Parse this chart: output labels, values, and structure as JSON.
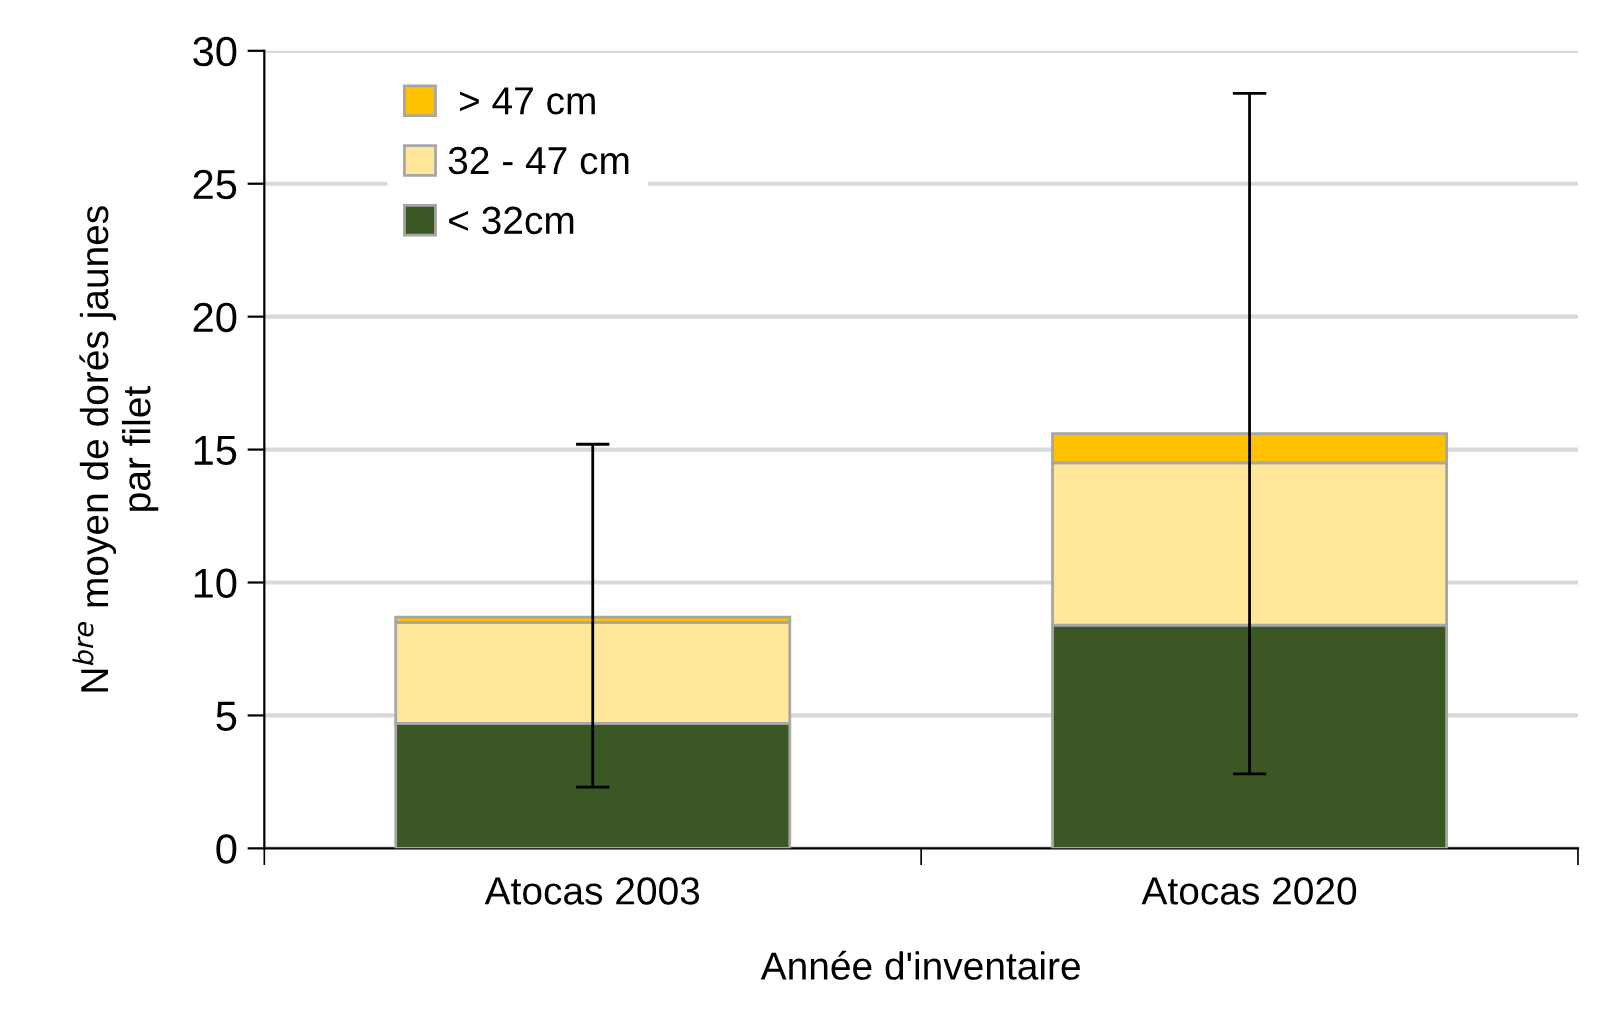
{
  "chart_data": {
    "type": "bar",
    "stacked": true,
    "xlabel": "Année d'inventaire",
    "ylabel": "N$^{bre}$ moyen de dorés jaunes\npar filet",
    "categories": [
      "Atocas 2003",
      "Atocas 2020"
    ],
    "series": [
      {
        "name": "< 32cm",
        "color": "#3b5723",
        "values": [
          4.7,
          8.4
        ]
      },
      {
        "name": "32 - 47 cm",
        "color": "#ffe699",
        "values": [
          3.8,
          6.1
        ]
      },
      {
        "name": " > 47 cm",
        "color": "#ffc000",
        "values": [
          0.2,
          1.1
        ],
        "errors": [
          [
            2.3,
            15.2
          ],
          [
            2.8,
            28.4
          ]
        ]
      }
    ],
    "ylim": [
      0,
      30
    ],
    "yticks": [
      0,
      5,
      10,
      15,
      20,
      25,
      30
    ],
    "grid": "y",
    "legend": "top left"
  }
}
